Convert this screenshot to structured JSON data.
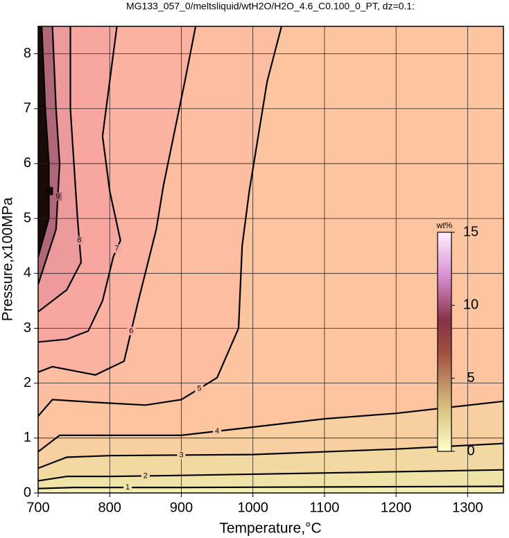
{
  "chart_data": {
    "type": "contour",
    "title": "MG133_057_0/meltsliquid/wtH2O/H2O_4.6_C0.100_0_PT, dz=0.1:",
    "x_label": "Temperature,°C",
    "y_label": "Pressure,x100MPa",
    "xlim": [
      700,
      1350
    ],
    "ylim": [
      0,
      8.5
    ],
    "xticks": [
      700,
      800,
      900,
      1000,
      1100,
      1200,
      1300
    ],
    "yticks": [
      0,
      1,
      2,
      3,
      4,
      5,
      6,
      7,
      8
    ],
    "grid": true,
    "base_color": "#f6eeb0",
    "contours": [
      {
        "level": 1,
        "color": "#efe3a8",
        "x": [
          700,
          750,
          900,
          1350
        ],
        "y": [
          0.08,
          0.1,
          0.1,
          0.12
        ]
      },
      {
        "level": 2,
        "color": "#f2d9a2",
        "x": [
          700,
          740,
          800,
          900,
          1130,
          1350
        ],
        "y": [
          0.22,
          0.3,
          0.3,
          0.32,
          0.37,
          0.42
        ]
      },
      {
        "level": 3,
        "color": "#f7cfa0",
        "x": [
          700,
          740,
          800,
          1000,
          1200,
          1350
        ],
        "y": [
          0.45,
          0.65,
          0.68,
          0.7,
          0.8,
          0.9
        ]
      },
      {
        "level": 4,
        "color": "#fcc5a0",
        "x": [
          700,
          730,
          800,
          900,
          1000,
          1100,
          1200,
          1350
        ],
        "y": [
          0.75,
          1.05,
          1.05,
          1.05,
          1.2,
          1.35,
          1.45,
          1.67
        ]
      },
      {
        "level": 5,
        "color": "#fcbda0",
        "x": [
          700,
          720,
          780,
          850,
          900,
          950,
          980,
          985,
          995,
          1020,
          1040
        ],
        "y": [
          1.4,
          1.7,
          1.65,
          1.6,
          1.7,
          2.1,
          3,
          4.5,
          5.5,
          7.5,
          8.5
        ]
      },
      {
        "level": 6,
        "color": "#fbb2a0",
        "x": [
          700,
          720,
          780,
          820,
          840,
          865,
          875,
          905,
          920
        ],
        "y": [
          2.2,
          2.3,
          2.15,
          2.4,
          3.5,
          4.8,
          5.6,
          7.5,
          8.5
        ]
      },
      {
        "level": 7,
        "color": "#f8a6a0",
        "x": [
          700,
          740,
          770,
          790,
          805,
          815,
          800,
          790,
          800,
          810
        ],
        "y": [
          2.75,
          2.8,
          2.95,
          3.5,
          4.3,
          4.6,
          5.5,
          6.5,
          7.5,
          8.5
        ]
      },
      {
        "level": 8,
        "color": "#ec9a9c",
        "x": [
          700,
          740,
          760,
          755,
          750,
          745,
          745
        ],
        "y": [
          3.3,
          3.7,
          4.2,
          5,
          6,
          7,
          8.5
        ]
      },
      {
        "level": 9,
        "color": "#b06878",
        "x": [
          700,
          725,
          730,
          725,
          720
        ],
        "y": [
          3.8,
          4.8,
          6,
          7,
          8.5
        ]
      },
      {
        "level": 10,
        "color": "#1a0a0a",
        "x": [
          700,
          715,
          715,
          710,
          705
        ],
        "y": [
          4.3,
          5,
          6,
          7,
          8.5
        ]
      }
    ],
    "colorbar": {
      "title": "wt%",
      "lim": [
        0,
        15
      ],
      "ticks": [
        0,
        5,
        10,
        15
      ]
    }
  }
}
